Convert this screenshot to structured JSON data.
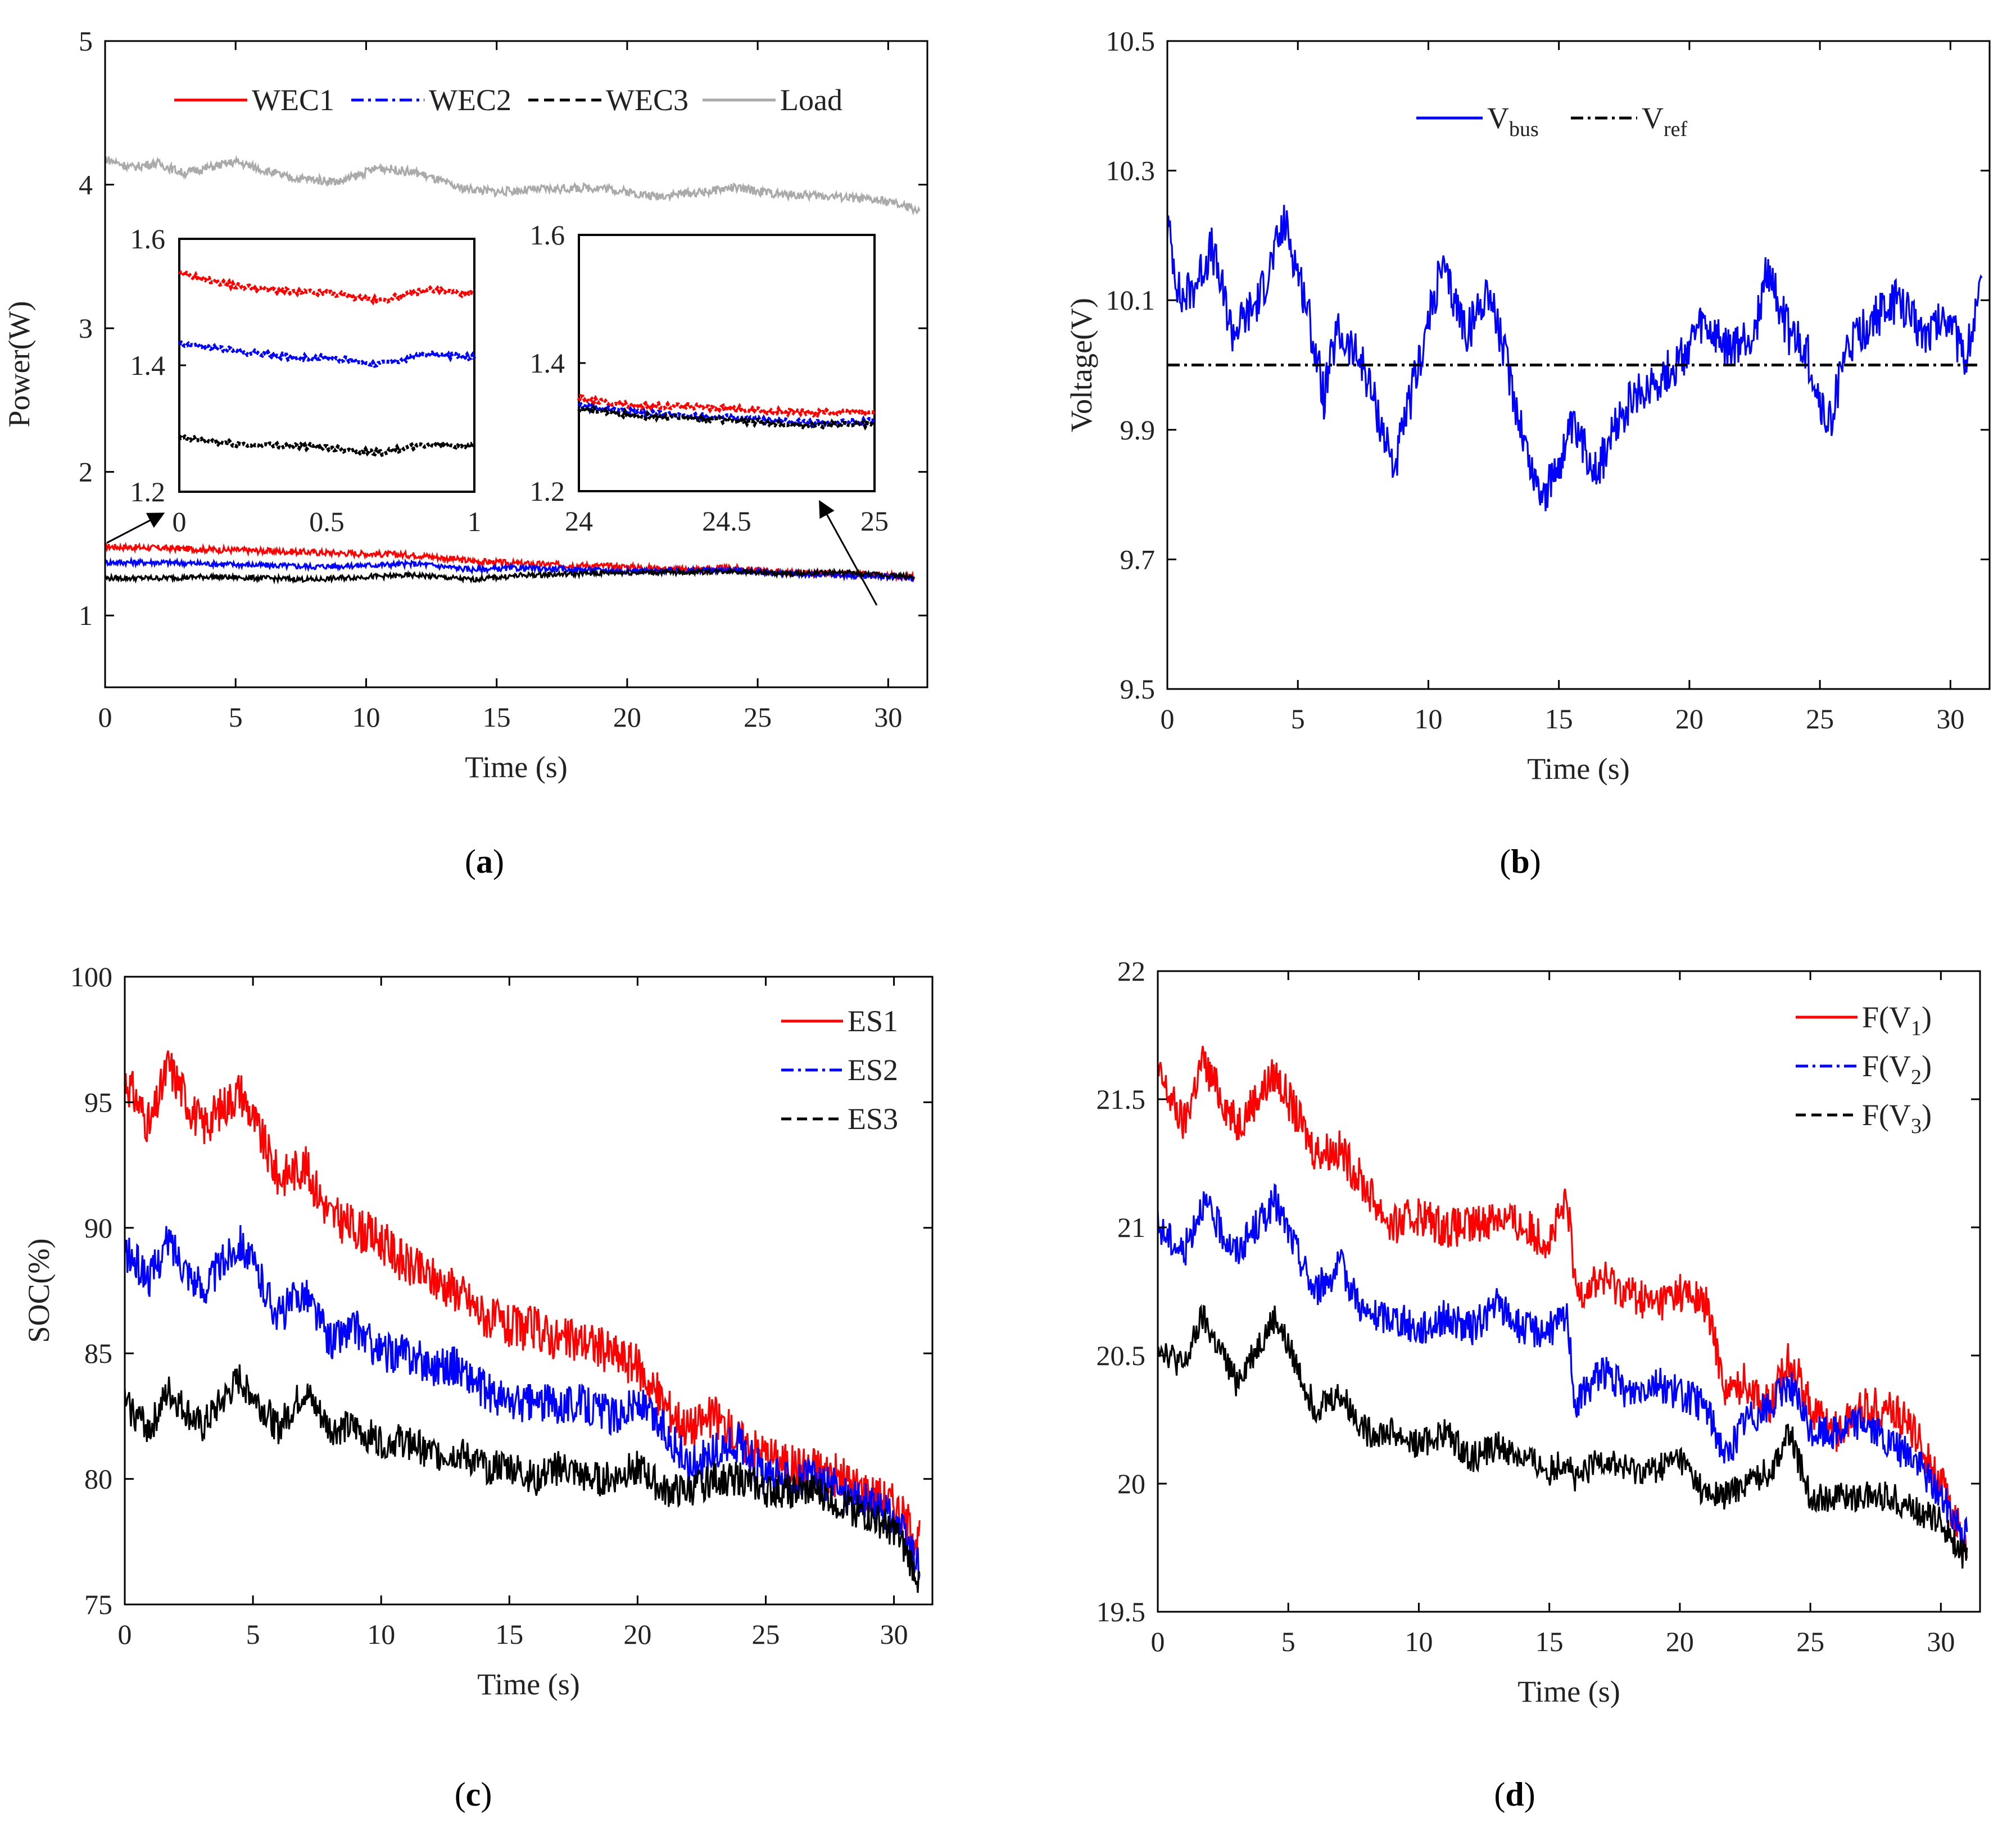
{
  "colors": {
    "red": "#ff0000",
    "blue": "#0000ff",
    "black": "#000000",
    "gray": "#aaaaaa",
    "axis": "#000000"
  },
  "chart_data": [
    {
      "id": "a",
      "type": "line",
      "caption_open": "(",
      "caption_letter": "a",
      "caption_close": ")",
      "xlabel": "Time (s)",
      "ylabel": "Power(W)",
      "xlim": [
        0,
        31.5
      ],
      "ylim": [
        0.5,
        5
      ],
      "xticks": [
        0,
        5,
        10,
        15,
        20,
        25,
        30
      ],
      "yticks": [
        1,
        2,
        3,
        4,
        5
      ],
      "ytick_labels": [
        "1",
        "2",
        "3",
        "4",
        "5"
      ],
      "legend_position": "top-center",
      "series": [
        {
          "name": "WEC1",
          "color": "#ff0000",
          "style": "solid",
          "x": [
            0,
            2,
            4,
            6,
            8,
            10,
            12,
            14,
            16,
            18,
            20,
            22,
            24,
            26,
            28,
            30,
            31
          ],
          "y": [
            1.48,
            1.47,
            1.46,
            1.45,
            1.44,
            1.43,
            1.42,
            1.38,
            1.36,
            1.35,
            1.34,
            1.32,
            1.33,
            1.3,
            1.29,
            1.28,
            1.27
          ]
        },
        {
          "name": "WEC2",
          "color": "#0000ff",
          "style": "dashdot",
          "x": [
            0,
            2,
            4,
            6,
            8,
            10,
            12,
            14,
            16,
            18,
            20,
            22,
            24,
            26,
            28,
            30,
            31
          ],
          "y": [
            1.37,
            1.37,
            1.36,
            1.35,
            1.34,
            1.35,
            1.36,
            1.32,
            1.33,
            1.32,
            1.31,
            1.31,
            1.32,
            1.29,
            1.28,
            1.27,
            1.26
          ]
        },
        {
          "name": "WEC3",
          "color": "#000000",
          "style": "dashed",
          "x": [
            0,
            2,
            4,
            6,
            8,
            10,
            12,
            14,
            16,
            18,
            20,
            22,
            24,
            26,
            28,
            30,
            31
          ],
          "y": [
            1.26,
            1.26,
            1.27,
            1.26,
            1.25,
            1.27,
            1.28,
            1.25,
            1.28,
            1.29,
            1.3,
            1.3,
            1.31,
            1.29,
            1.3,
            1.28,
            1.27
          ]
        },
        {
          "name": "Load",
          "color": "#aaaaaa",
          "style": "solid",
          "x": [
            0,
            1,
            2,
            3,
            5,
            7,
            9,
            10.5,
            12,
            13.5,
            15,
            17,
            19,
            21,
            23,
            24,
            26,
            28,
            30,
            31.2
          ],
          "y": [
            4.18,
            4.12,
            4.15,
            4.08,
            4.16,
            4.05,
            4.02,
            4.12,
            4.08,
            3.98,
            3.95,
            3.97,
            3.98,
            3.92,
            3.95,
            3.98,
            3.93,
            3.92,
            3.88,
            3.82
          ]
        }
      ],
      "insets": [
        {
          "xlim": [
            0,
            1
          ],
          "ylim": [
            1.2,
            1.6
          ],
          "xticks": [
            "0",
            "0.5",
            "1"
          ],
          "yticks": [
            "1.2",
            "1.4",
            "1.6"
          ],
          "series": [
            {
              "name": "WEC1",
              "color": "#ff0000",
              "x": [
                0,
                0.2,
                0.4,
                0.5,
                0.68,
                0.85,
                1
              ],
              "y": [
                1.545,
                1.525,
                1.515,
                1.515,
                1.502,
                1.52,
                1.512
              ]
            },
            {
              "name": "WEC2",
              "color": "#0000ff",
              "x": [
                0,
                0.2,
                0.4,
                0.5,
                0.68,
                0.85,
                1
              ],
              "y": [
                1.435,
                1.422,
                1.412,
                1.412,
                1.402,
                1.418,
                1.412
              ]
            },
            {
              "name": "WEC3",
              "color": "#000000",
              "x": [
                0,
                0.2,
                0.4,
                0.5,
                0.68,
                0.85,
                1
              ],
              "y": [
                1.285,
                1.275,
                1.272,
                1.27,
                1.262,
                1.275,
                1.272
              ]
            }
          ]
        },
        {
          "xlim": [
            24,
            25
          ],
          "ylim": [
            1.2,
            1.6
          ],
          "xticks": [
            "24",
            "24.5",
            "25"
          ],
          "yticks": [
            "1.2",
            "1.4",
            "1.6"
          ],
          "series": [
            {
              "name": "WEC1",
              "color": "#ff0000",
              "x": [
                24,
                24.2,
                24.4,
                24.6,
                24.8,
                25
              ],
              "y": [
                1.345,
                1.333,
                1.332,
                1.326,
                1.322,
                1.325
              ]
            },
            {
              "name": "WEC2",
              "color": "#0000ff",
              "x": [
                24,
                24.2,
                24.4,
                24.6,
                24.8,
                25
              ],
              "y": [
                1.333,
                1.322,
                1.318,
                1.312,
                1.306,
                1.31
              ]
            },
            {
              "name": "WEC3",
              "color": "#000000",
              "x": [
                24,
                24.2,
                24.4,
                24.6,
                24.8,
                25
              ],
              "y": [
                1.328,
                1.318,
                1.314,
                1.308,
                1.302,
                1.306
              ]
            }
          ]
        }
      ]
    },
    {
      "id": "b",
      "type": "line",
      "caption_open": "(",
      "caption_letter": "b",
      "caption_close": ")",
      "xlabel": "Time (s)",
      "ylabel": "Voltage(V)",
      "xlim": [
        0,
        31.5
      ],
      "ylim": [
        9.5,
        10.5
      ],
      "xticks": [
        0,
        5,
        10,
        15,
        20,
        25,
        30
      ],
      "yticks": [
        9.5,
        9.7,
        9.9,
        10.1,
        10.3,
        10.5
      ],
      "ytick_labels": [
        "9.5",
        "9.7",
        "9.9",
        "10.1",
        "10.3",
        "10.5"
      ],
      "legend_position": "top-center",
      "series": [
        {
          "name": "V",
          "sub": "bus",
          "color": "#0000ff",
          "style": "solid",
          "x": [
            0,
            0.5,
            1,
            1.7,
            2.5,
            3.5,
            4.5,
            5.3,
            6,
            6.5,
            7.5,
            8.7,
            9.5,
            10.5,
            11.5,
            12.3,
            13.3,
            14,
            14.5,
            15.5,
            16.5,
            17.5,
            18.5,
            19.5,
            20.5,
            21.5,
            22.5,
            23,
            23.8,
            24.5,
            25.3,
            26,
            27,
            28,
            29,
            30,
            30.5,
            31.2
          ],
          "y": [
            10.22,
            10.1,
            10.12,
            10.18,
            10.05,
            10.1,
            10.22,
            10.1,
            9.95,
            10.05,
            10.0,
            9.84,
            9.98,
            10.15,
            10.05,
            10.12,
            9.95,
            9.83,
            9.8,
            9.9,
            9.84,
            9.93,
            9.97,
            10.0,
            10.06,
            10.02,
            10.05,
            10.15,
            10.05,
            10.02,
            9.9,
            10.02,
            10.07,
            10.1,
            10.05,
            10.08,
            10.0,
            10.12
          ]
        },
        {
          "name": "V",
          "sub": "ref",
          "color": "#000000",
          "style": "dashdot",
          "x": [
            0,
            31.2
          ],
          "y": [
            10.0,
            10.0
          ]
        }
      ]
    },
    {
      "id": "c",
      "type": "line",
      "caption_open": "(",
      "caption_letter": "c",
      "caption_close": ")",
      "xlabel": "Time (s)",
      "ylabel": "SOC(%)",
      "xlim": [
        0,
        31.5
      ],
      "ylim": [
        75,
        100
      ],
      "xticks": [
        0,
        5,
        10,
        15,
        20,
        25,
        30
      ],
      "yticks": [
        75,
        80,
        85,
        90,
        95,
        100
      ],
      "ytick_labels": [
        "75",
        "80",
        "85",
        "90",
        "95",
        "100"
      ],
      "legend_position": "top-right",
      "series": [
        {
          "name": "ES1",
          "color": "#ff0000",
          "style": "solid",
          "x": [
            0,
            1,
            1.7,
            3,
            4.5,
            6,
            7,
            8,
            9,
            10,
            11,
            12,
            13,
            14,
            15,
            16,
            17,
            18,
            19,
            20,
            21,
            22,
            23,
            24,
            25,
            26,
            27,
            28,
            29,
            30,
            31
          ],
          "y": [
            96,
            94,
            96.5,
            94,
            95.5,
            92,
            92.5,
            90.5,
            90,
            89.5,
            88.5,
            88,
            87.5,
            86.5,
            86,
            86,
            85.5,
            85.5,
            85,
            84.5,
            83,
            82,
            82.5,
            81.5,
            81,
            80.5,
            80.5,
            80,
            79.5,
            79,
            77.5
          ]
        },
        {
          "name": "ES2",
          "color": "#0000ff",
          "style": "dashdot",
          "x": [
            0,
            1,
            1.7,
            3,
            4.5,
            6,
            7,
            8,
            9,
            10,
            11,
            12,
            13,
            14,
            15,
            16,
            17,
            18,
            19,
            20,
            21,
            22,
            23,
            24,
            25,
            26,
            27,
            28,
            29,
            30,
            31
          ],
          "y": [
            89,
            88,
            89.5,
            87.5,
            89.5,
            86.5,
            87.5,
            85.5,
            86,
            85,
            85,
            84.5,
            84.5,
            83.5,
            83,
            83,
            83,
            83,
            82.5,
            83,
            82,
            80.5,
            81,
            81.5,
            80,
            80,
            80,
            79.5,
            79,
            78.5,
            76.5
          ]
        },
        {
          "name": "ES3",
          "color": "#000000",
          "style": "dashed",
          "x": [
            0,
            1,
            1.7,
            3,
            4.5,
            6,
            7,
            8,
            9,
            10,
            11,
            12,
            13,
            14,
            15,
            16,
            17,
            18,
            19,
            20,
            21,
            22,
            23,
            24,
            25,
            26,
            27,
            28,
            29,
            30,
            31
          ],
          "y": [
            83,
            82,
            83.5,
            82,
            84,
            82,
            83.5,
            82,
            82,
            81.5,
            81.5,
            81,
            81,
            80.5,
            80.5,
            80,
            80.5,
            80,
            80,
            80.5,
            79.5,
            79.5,
            80,
            80,
            79.5,
            79.5,
            79.5,
            79,
            78.5,
            78,
            76
          ]
        }
      ]
    },
    {
      "id": "d",
      "type": "line",
      "caption_open": "(",
      "caption_letter": "d",
      "caption_close": ")",
      "xlabel": "Time (s)",
      "ylabel": "",
      "xlim": [
        0,
        31.5
      ],
      "ylim": [
        19.5,
        22
      ],
      "xticks": [
        0,
        5,
        10,
        15,
        20,
        25,
        30
      ],
      "yticks": [
        19.5,
        20,
        20.5,
        21,
        21.5,
        22
      ],
      "ytick_labels": [
        "19.5",
        "20",
        "20.5",
        "21",
        "21.5",
        "22"
      ],
      "legend_position": "top-right",
      "series": [
        {
          "name": "F(V",
          "sub": "1",
          "suffix": ")",
          "color": "#ff0000",
          "style": "solid",
          "x": [
            0,
            1,
            1.7,
            3,
            4.5,
            6,
            7,
            8,
            9,
            10,
            11,
            12,
            13,
            14,
            15,
            15.7,
            16,
            17,
            18,
            19,
            20,
            21,
            21.8,
            22.5,
            23.5,
            24.2,
            25,
            26,
            27,
            28,
            29,
            30,
            31
          ],
          "y": [
            21.6,
            21.4,
            21.65,
            21.4,
            21.6,
            21.3,
            21.3,
            21.15,
            21.0,
            21.05,
            21.0,
            21.0,
            21.05,
            21.0,
            20.95,
            21.1,
            20.75,
            20.8,
            20.75,
            20.7,
            20.75,
            20.7,
            20.35,
            20.4,
            20.3,
            20.5,
            20.3,
            20.2,
            20.3,
            20.3,
            20.2,
            20.0,
            19.75
          ]
        },
        {
          "name": "F(V",
          "sub": "2",
          "suffix": ")",
          "color": "#0000ff",
          "style": "dashdot",
          "x": [
            0,
            1,
            1.7,
            3,
            4.5,
            6,
            7,
            8,
            9,
            10,
            11,
            12,
            13,
            14,
            15,
            15.7,
            16,
            17,
            18,
            19,
            20,
            21,
            21.8,
            22.5,
            23.5,
            24.2,
            25,
            26,
            27,
            28,
            29,
            30,
            31
          ],
          "y": [
            21.0,
            20.9,
            21.1,
            20.9,
            21.1,
            20.75,
            20.85,
            20.65,
            20.65,
            20.6,
            20.65,
            20.6,
            20.7,
            20.6,
            20.6,
            20.65,
            20.3,
            20.45,
            20.35,
            20.4,
            20.35,
            20.3,
            20.1,
            20.25,
            20.3,
            20.4,
            20.2,
            20.2,
            20.25,
            20.15,
            20.1,
            19.95,
            19.8
          ]
        },
        {
          "name": "F(V",
          "sub": "3",
          "suffix": ")",
          "color": "#000000",
          "style": "dashed",
          "x": [
            0,
            1,
            1.7,
            3,
            4.5,
            6,
            7,
            8,
            9,
            10,
            11,
            12,
            13,
            14,
            15,
            15.7,
            16,
            17,
            18,
            19,
            20,
            21,
            21.8,
            22.5,
            23.5,
            24.2,
            25,
            26,
            27,
            28,
            29,
            30,
            31
          ],
          "y": [
            20.55,
            20.45,
            20.65,
            20.4,
            20.65,
            20.3,
            20.35,
            20.2,
            20.2,
            20.15,
            20.2,
            20.1,
            20.15,
            20.1,
            20.05,
            20.1,
            20.0,
            20.1,
            20.05,
            20.05,
            20.1,
            19.95,
            19.95,
            20.0,
            20.05,
            20.2,
            19.95,
            19.95,
            19.95,
            19.95,
            19.9,
            19.85,
            19.7
          ]
        }
      ]
    }
  ]
}
